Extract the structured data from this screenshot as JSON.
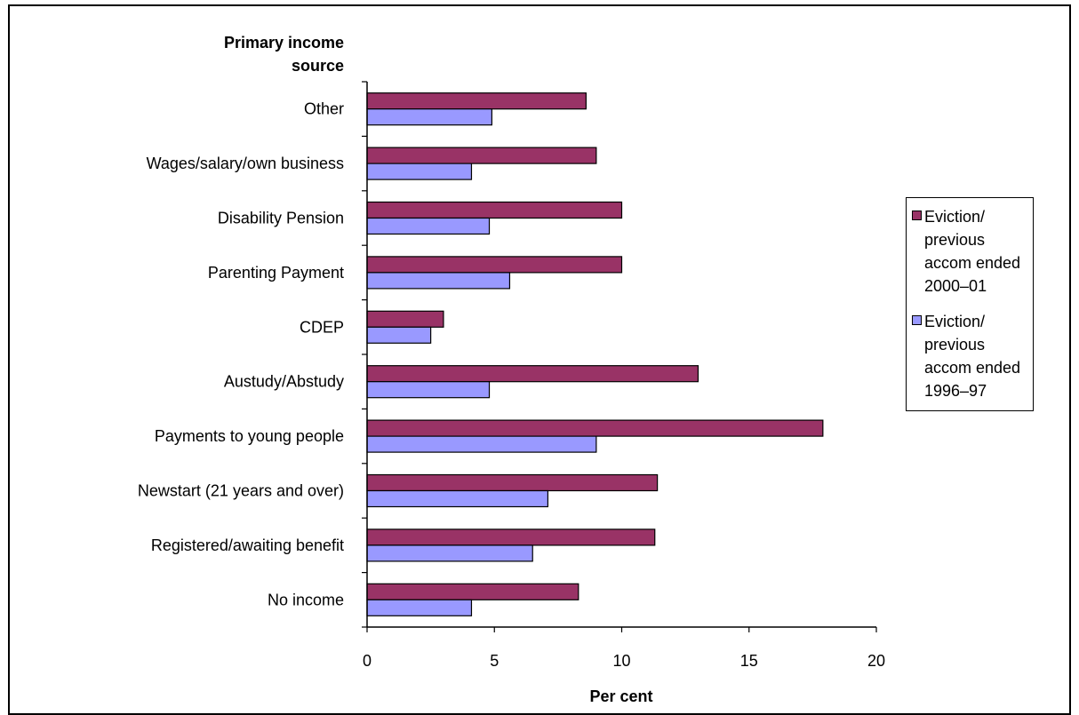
{
  "chart_data": {
    "type": "bar",
    "orientation": "horizontal",
    "ylabel": "Primary income source",
    "xlabel": "Per cent",
    "xlim": [
      0,
      20
    ],
    "xticks": [
      0,
      5,
      10,
      15,
      20
    ],
    "grid": false,
    "legend_position": "right",
    "categories": [
      "Other",
      "Wages/salary/own business",
      "Disability Pension",
      "Parenting Payment",
      "CDEP",
      "Austudy/Abstudy",
      "Payments to young people",
      "Newstart (21 years and over)",
      "Registered/awaiting benefit",
      "No income"
    ],
    "series": [
      {
        "name": "Eviction/ previous accom ended 2000–01",
        "color": "#993366",
        "values": [
          8.6,
          9.0,
          10.0,
          10.0,
          3.0,
          13.0,
          17.9,
          11.4,
          11.3,
          8.3
        ]
      },
      {
        "name": "Eviction/ previous accom ended 1996–97",
        "color": "#9999ff",
        "values": [
          4.9,
          4.1,
          4.8,
          5.6,
          2.5,
          4.8,
          9.0,
          7.1,
          6.5,
          4.1
        ]
      }
    ]
  }
}
